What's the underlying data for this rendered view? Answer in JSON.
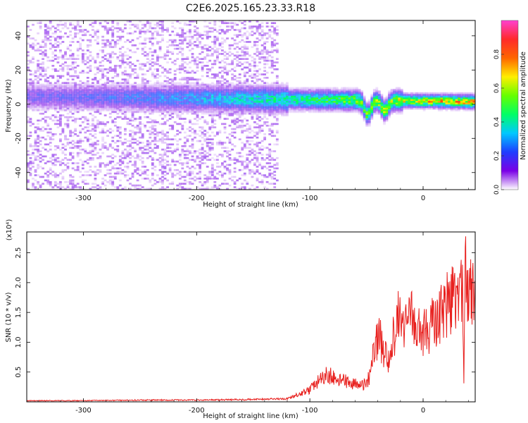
{
  "title": "C2E6.2025.165.23.33.R18",
  "chart_data": [
    {
      "type": "heatmap",
      "xlabel": "Height of straight line (km)",
      "ylabel": "Frequency (Hz)",
      "xlim": [
        -350,
        46
      ],
      "ylim": [
        -50,
        49
      ],
      "xticks": [
        -300,
        -200,
        -100,
        0
      ],
      "yticks": [
        -40,
        -20,
        0,
        20,
        40
      ],
      "colorbar": {
        "label": "Normalized spectral amplitude",
        "range": [
          0.0,
          1.0
        ],
        "ticks": [
          0.0,
          0.2,
          0.4,
          0.6,
          0.8
        ],
        "tick_labels": [
          "0.0",
          "0.2",
          "0.4",
          "0.6",
          "0.8"
        ],
        "palette": [
          "#ffffff",
          "#7a00e6",
          "#1f3dff",
          "#00c8ff",
          "#00ff66",
          "#66ff00",
          "#ffee00",
          "#ff6600",
          "#ff2a2a",
          "#ff40d0"
        ]
      },
      "features": [
        {
          "name": "main signal band",
          "x_range": [
            -350,
            46
          ],
          "frequency_start": 4,
          "frequency_end": 1,
          "amplitude_start": 0.2,
          "amplitude_end": 0.85
        },
        {
          "name": "dip",
          "x": -50,
          "frequency_min": -12
        },
        {
          "name": "dip",
          "x": -35,
          "frequency_min": -8
        },
        {
          "name": "background noise",
          "x_range": [
            -350,
            -130
          ],
          "amplitude": 0.1
        }
      ]
    },
    {
      "type": "line",
      "xlabel": "Height of straight line (km)",
      "ylabel": "SNR (10 * v/v)",
      "y_scale_label": "(x10⁴)",
      "xlim": [
        -350,
        46
      ],
      "ylim": [
        0,
        2.85
      ],
      "xticks": [
        -300,
        -200,
        -100,
        0
      ],
      "yticks": [
        0.5,
        1.0,
        1.5,
        2.0,
        2.5
      ],
      "ytick_labels": [
        "0.5",
        "1.0",
        "1.5",
        "2.0",
        "2.5"
      ],
      "color": "#e8201e",
      "series": [
        {
          "x": [
            -350,
            -300,
            -250,
            -200,
            -150,
            -120,
            -110,
            -100,
            -95,
            -90,
            -85,
            -80,
            -75,
            -70,
            -65,
            -60,
            -55,
            -50,
            -47,
            -45,
            -42,
            -40,
            -38,
            -35,
            -33,
            -30,
            -28,
            -26,
            -24,
            -22,
            -20,
            -18,
            -15,
            -12,
            -10,
            -8,
            -5,
            -3,
            0,
            3,
            6,
            10,
            15,
            20,
            25,
            30,
            33,
            35,
            36,
            37,
            38,
            40,
            42,
            44,
            46
          ],
          "y": [
            0.02,
            0.02,
            0.03,
            0.03,
            0.04,
            0.05,
            0.12,
            0.2,
            0.3,
            0.38,
            0.45,
            0.42,
            0.38,
            0.35,
            0.32,
            0.3,
            0.26,
            0.3,
            0.45,
            0.8,
            1.0,
            1.1,
            1.05,
            0.9,
            0.8,
            0.7,
            0.9,
            1.1,
            1.3,
            1.4,
            1.35,
            1.3,
            1.25,
            1.35,
            1.4,
            1.3,
            1.25,
            1.2,
            1.15,
            1.2,
            1.25,
            1.35,
            1.5,
            1.6,
            1.75,
            1.8,
            1.9,
            2.0,
            0.3,
            2.85,
            1.6,
            1.75,
            2.05,
            1.75,
            1.72
          ]
        }
      ]
    }
  ]
}
